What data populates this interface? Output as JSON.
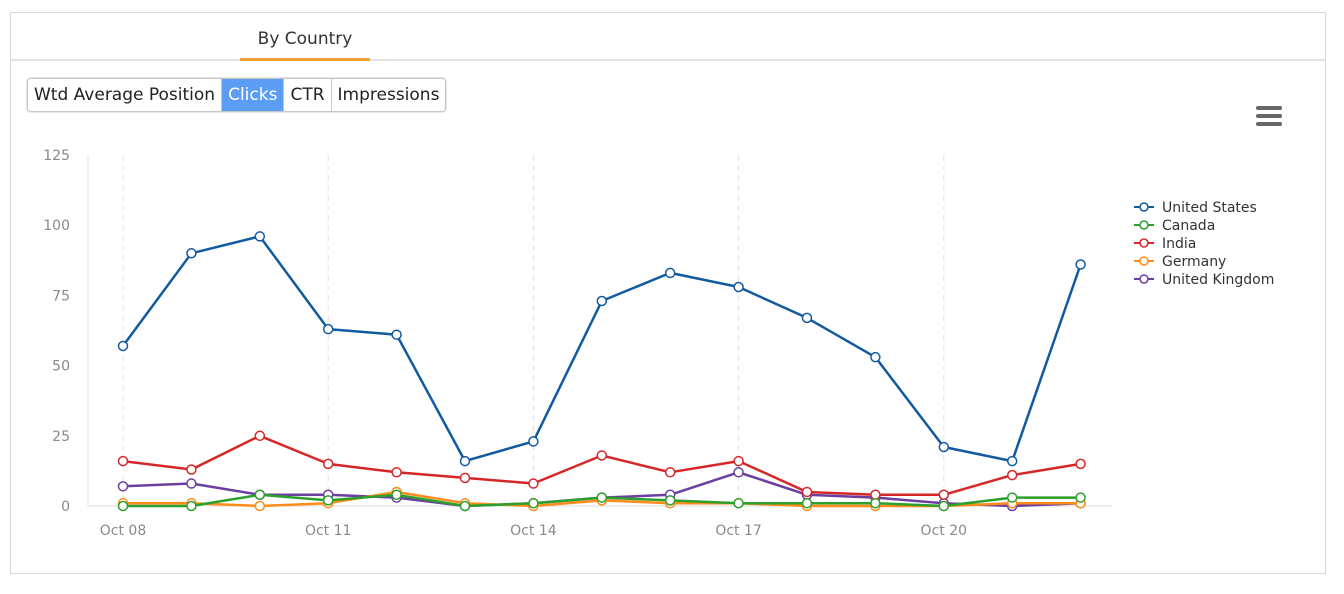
{
  "tabs": [
    {
      "label": "By Country"
    }
  ],
  "metric_buttons": [
    "Wtd Average Position",
    "Clicks",
    "CTR",
    "Impressions"
  ],
  "active_metric": "Clicks",
  "menu_icon": "hamburger-menu-icon",
  "chart_data": {
    "type": "line",
    "x": [
      "Oct 08",
      "Oct 09",
      "Oct 10",
      "Oct 11",
      "Oct 12",
      "Oct 13",
      "Oct 14",
      "Oct 15",
      "Oct 16",
      "Oct 17",
      "Oct 18",
      "Oct 19",
      "Oct 20",
      "Oct 21",
      "Oct 22"
    ],
    "x_tick_labels": [
      "Oct 08",
      "Oct 11",
      "Oct 14",
      "Oct 17",
      "Oct 20"
    ],
    "y_ticks": [
      0,
      25,
      50,
      75,
      100,
      125
    ],
    "ylim": [
      0,
      125
    ],
    "grid": "vertical dashed at x tick labels",
    "legend_position": "right",
    "series": [
      {
        "name": "United States",
        "color": "#115aa0",
        "values": [
          57,
          90,
          96,
          63,
          61,
          16,
          23,
          73,
          83,
          78,
          67,
          53,
          21,
          16,
          86
        ]
      },
      {
        "name": "Canada",
        "color": "#2ca02c",
        "values": [
          0,
          0,
          4,
          2,
          4,
          0,
          1,
          3,
          2,
          1,
          1,
          1,
          0,
          3,
          3
        ]
      },
      {
        "name": "India",
        "color": "#d62728",
        "values": [
          16,
          13,
          25,
          15,
          12,
          10,
          8,
          18,
          12,
          16,
          5,
          4,
          4,
          11,
          15
        ]
      },
      {
        "name": "Germany",
        "color": "#ff8c1a",
        "values": [
          1,
          1,
          0,
          1,
          5,
          1,
          0,
          2,
          1,
          1,
          0,
          0,
          0,
          1,
          1
        ]
      },
      {
        "name": "United Kingdom",
        "color": "#6b3fa0",
        "values": [
          7,
          8,
          4,
          4,
          3,
          0,
          1,
          3,
          4,
          12,
          4,
          3,
          1,
          0,
          1
        ]
      }
    ]
  }
}
